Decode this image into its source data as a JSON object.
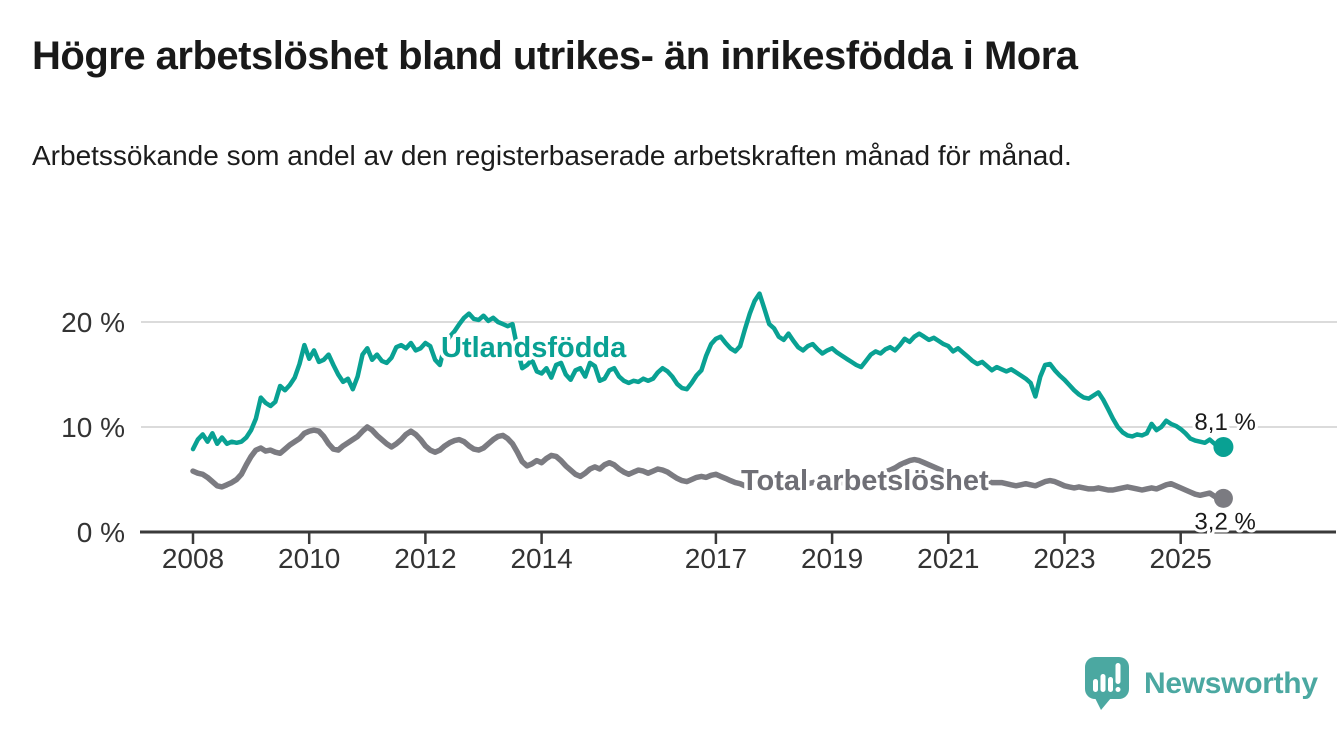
{
  "header": {
    "title": "Högre arbetslöshet bland utrikes- än inrikesfödda i Mora",
    "subtitle": "Arbetssökande som andel av den registerbaserade arbetskraften månad för månad."
  },
  "branding": {
    "logo_text": "Newsworthy",
    "brand_color": "#4BA8A1"
  },
  "chart_data": {
    "type": "line",
    "unit": "%",
    "grid": "horizontal",
    "legend": "inline-labels",
    "x_start_year": 2008.0,
    "x_step_years": 0.0833333,
    "x_axis": {
      "ticks": [
        {
          "label": "2008",
          "year": 2008
        },
        {
          "label": "2010",
          "year": 2010
        },
        {
          "label": "2012",
          "year": 2012
        },
        {
          "label": "2014",
          "year": 2014
        },
        {
          "label": "2017",
          "year": 2017
        },
        {
          "label": "2019",
          "year": 2019
        },
        {
          "label": "2021",
          "year": 2021
        },
        {
          "label": "2023",
          "year": 2023
        },
        {
          "label": "2025",
          "year": 2025
        }
      ]
    },
    "y_axis": {
      "ticks": [
        {
          "label": "0 %",
          "value": 0
        },
        {
          "label": "10 %",
          "value": 10
        },
        {
          "label": "20 %",
          "value": 20
        }
      ],
      "range": [
        0,
        23
      ]
    },
    "series": [
      {
        "name": "Utlandsfödda",
        "color": "#09A193",
        "label_color": "#09A193",
        "end_value": 8.1,
        "end_value_label": "8,1 %",
        "values": [
          7.9,
          8.8,
          9.3,
          8.6,
          9.4,
          8.4,
          9.0,
          8.4,
          8.6,
          8.5,
          8.6,
          9.0,
          9.7,
          10.8,
          12.8,
          12.3,
          12.0,
          12.4,
          13.9,
          13.5,
          14.0,
          14.7,
          16.0,
          17.8,
          16.5,
          17.3,
          16.2,
          16.4,
          16.9,
          15.9,
          15.0,
          14.3,
          14.6,
          13.6,
          14.8,
          16.9,
          17.5,
          16.4,
          16.9,
          16.3,
          16.1,
          16.6,
          17.6,
          17.8,
          17.5,
          18.0,
          17.3,
          17.5,
          18.0,
          17.7,
          16.4,
          15.9,
          17.8,
          18.6,
          19.1,
          19.8,
          20.4,
          20.8,
          20.3,
          20.2,
          20.6,
          20.1,
          20.4,
          20.0,
          19.8,
          19.6,
          19.8,
          17.5,
          15.6,
          15.9,
          16.4,
          15.3,
          15.1,
          15.6,
          14.7,
          15.9,
          16.1,
          15.0,
          14.5,
          15.4,
          15.6,
          14.8,
          16.1,
          15.8,
          14.4,
          14.6,
          15.4,
          15.6,
          14.8,
          14.4,
          14.2,
          14.4,
          14.3,
          14.6,
          14.4,
          14.6,
          15.2,
          15.6,
          15.3,
          14.8,
          14.1,
          13.7,
          13.6,
          14.2,
          14.9,
          15.4,
          16.8,
          17.9,
          18.4,
          18.6,
          18.0,
          17.5,
          17.2,
          17.7,
          19.3,
          20.8,
          22.0,
          22.7,
          21.3,
          19.8,
          19.4,
          18.6,
          18.3,
          18.9,
          18.2,
          17.6,
          17.3,
          17.7,
          17.9,
          17.4,
          17.0,
          17.3,
          17.5,
          17.1,
          16.8,
          16.5,
          16.2,
          15.9,
          15.7,
          16.3,
          16.9,
          17.2,
          17.0,
          17.4,
          17.6,
          17.3,
          17.8,
          18.4,
          18.1,
          18.6,
          18.9,
          18.6,
          18.3,
          18.5,
          18.2,
          17.9,
          17.7,
          17.2,
          17.5,
          17.1,
          16.7,
          16.3,
          16.0,
          16.2,
          15.8,
          15.4,
          15.7,
          15.5,
          15.3,
          15.5,
          15.2,
          14.9,
          14.6,
          14.2,
          12.9,
          14.8,
          15.9,
          16.0,
          15.4,
          14.9,
          14.5,
          14.0,
          13.5,
          13.1,
          12.8,
          12.7,
          13.0,
          13.3,
          12.6,
          11.7,
          10.8,
          10.0,
          9.5,
          9.2,
          9.1,
          9.3,
          9.2,
          9.4,
          10.3,
          9.7,
          10.0,
          10.6,
          10.3,
          10.1,
          9.8,
          9.4,
          8.9,
          8.7,
          8.6,
          8.5,
          8.8,
          8.4,
          8.1
        ]
      },
      {
        "name": "Total arbetslöshet",
        "color": "#7B7B81",
        "label_color": "#6F6F76",
        "end_value": 3.2,
        "end_value_label": "3,2 %",
        "values": [
          5.8,
          5.6,
          5.5,
          5.2,
          4.8,
          4.4,
          4.3,
          4.5,
          4.7,
          5.0,
          5.5,
          6.4,
          7.2,
          7.8,
          8.0,
          7.7,
          7.8,
          7.6,
          7.5,
          7.9,
          8.3,
          8.6,
          8.9,
          9.4,
          9.6,
          9.7,
          9.6,
          9.1,
          8.4,
          7.9,
          7.8,
          8.2,
          8.5,
          8.8,
          9.1,
          9.6,
          10.0,
          9.7,
          9.2,
          8.8,
          8.4,
          8.1,
          8.4,
          8.8,
          9.3,
          9.6,
          9.3,
          8.8,
          8.2,
          7.8,
          7.6,
          7.8,
          8.2,
          8.5,
          8.7,
          8.8,
          8.6,
          8.2,
          7.9,
          7.8,
          8.0,
          8.4,
          8.8,
          9.1,
          9.2,
          8.9,
          8.4,
          7.6,
          6.7,
          6.3,
          6.5,
          6.8,
          6.6,
          7.0,
          7.3,
          7.2,
          6.8,
          6.3,
          5.9,
          5.5,
          5.3,
          5.6,
          6.0,
          6.2,
          6.0,
          6.4,
          6.6,
          6.4,
          6.0,
          5.7,
          5.5,
          5.7,
          5.9,
          5.8,
          5.6,
          5.8,
          6.0,
          5.9,
          5.7,
          5.4,
          5.1,
          4.9,
          4.8,
          5.0,
          5.2,
          5.3,
          5.2,
          5.4,
          5.5,
          5.3,
          5.1,
          4.9,
          4.7,
          4.6,
          4.4,
          4.6,
          4.9,
          5.1,
          5.0,
          4.8,
          4.7,
          4.9,
          5.0,
          4.8,
          4.6,
          4.5,
          4.4,
          4.6,
          4.7,
          4.8,
          4.7,
          4.8,
          4.9,
          4.8,
          4.7,
          4.6,
          4.5,
          4.6,
          4.7,
          4.8,
          5.0,
          5.2,
          5.4,
          5.7,
          5.9,
          6.1,
          6.4,
          6.6,
          6.8,
          6.9,
          6.8,
          6.6,
          6.4,
          6.2,
          6.0,
          5.8,
          5.7,
          5.5,
          5.3,
          5.2,
          5.0,
          4.9,
          4.8,
          4.9,
          4.8,
          4.7,
          4.7,
          4.7,
          4.6,
          4.5,
          4.4,
          4.5,
          4.6,
          4.5,
          4.4,
          4.6,
          4.8,
          4.9,
          4.8,
          4.6,
          4.4,
          4.3,
          4.2,
          4.3,
          4.2,
          4.1,
          4.1,
          4.2,
          4.1,
          4.0,
          4.0,
          4.1,
          4.2,
          4.3,
          4.2,
          4.1,
          4.0,
          4.1,
          4.2,
          4.1,
          4.3,
          4.5,
          4.6,
          4.4,
          4.2,
          4.0,
          3.8,
          3.6,
          3.5,
          3.6,
          3.7,
          3.4,
          3.2
        ]
      }
    ]
  }
}
